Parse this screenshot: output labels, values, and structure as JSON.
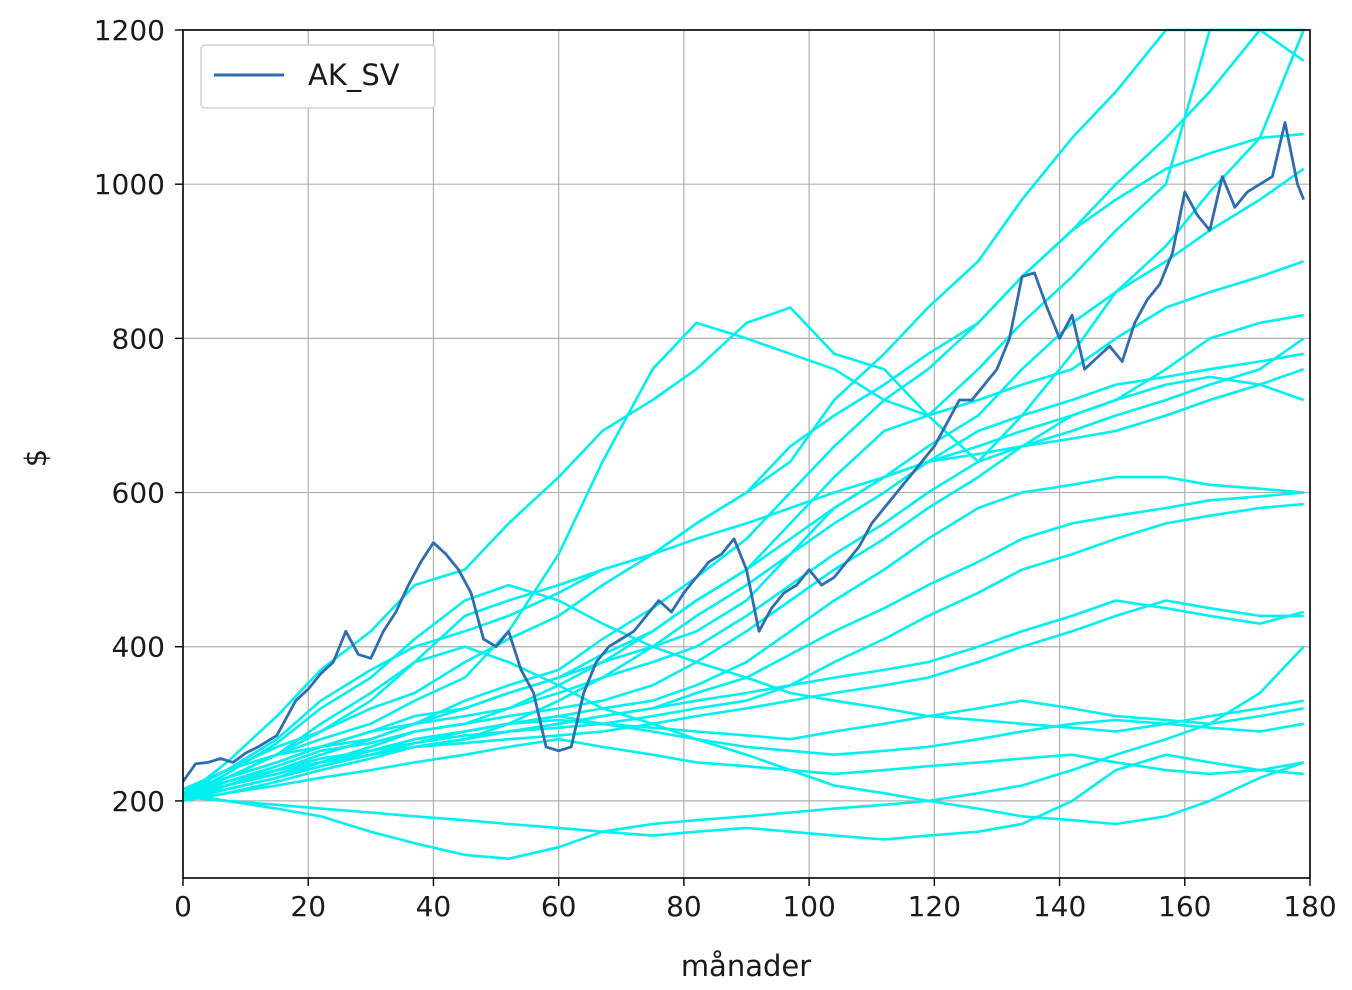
{
  "chart_data": {
    "type": "line",
    "title": "",
    "xlabel": "månader",
    "ylabel": "$",
    "xlim": [
      0,
      180
    ],
    "ylim": [
      100,
      1200
    ],
    "x_ticks": [
      0,
      20,
      40,
      60,
      80,
      100,
      120,
      140,
      160,
      180
    ],
    "y_ticks": [
      200,
      400,
      600,
      800,
      1000,
      1200
    ],
    "grid": true,
    "legend": {
      "placement": "top-left",
      "entries": [
        "AK_SV"
      ]
    },
    "colors": {
      "simulations": "#00f0f0",
      "highlight": "#2f6db0",
      "grid": "#b0b0b0"
    },
    "series": [
      {
        "name": "AK_SV",
        "color": "#2f6db0",
        "x": [
          0,
          2,
          4,
          6,
          8,
          10,
          12,
          15,
          18,
          20,
          22,
          24,
          26,
          28,
          30,
          32,
          34,
          36,
          38,
          40,
          42,
          44,
          46,
          48,
          50,
          52,
          54,
          56,
          58,
          60,
          62,
          64,
          66,
          68,
          70,
          72,
          74,
          76,
          78,
          80,
          82,
          84,
          86,
          88,
          90,
          92,
          94,
          96,
          98,
          100,
          102,
          104,
          106,
          108,
          110,
          112,
          114,
          116,
          118,
          120,
          122,
          124,
          126,
          128,
          130,
          132,
          134,
          136,
          138,
          140,
          142,
          144,
          146,
          148,
          150,
          152,
          154,
          156,
          158,
          160,
          162,
          164,
          166,
          168,
          170,
          172,
          174,
          176,
          178,
          179
        ],
        "values": [
          225,
          248,
          250,
          255,
          250,
          262,
          270,
          285,
          330,
          345,
          365,
          380,
          420,
          390,
          385,
          420,
          445,
          480,
          510,
          535,
          520,
          500,
          470,
          410,
          400,
          420,
          370,
          340,
          270,
          265,
          270,
          340,
          380,
          400,
          410,
          420,
          440,
          460,
          445,
          470,
          490,
          510,
          520,
          540,
          500,
          420,
          450,
          470,
          480,
          500,
          480,
          490,
          510,
          530,
          560,
          580,
          600,
          620,
          640,
          660,
          690,
          720,
          720,
          740,
          760,
          800,
          880,
          885,
          840,
          800,
          830,
          760,
          775,
          790,
          770,
          820,
          850,
          870,
          910,
          990,
          960,
          940,
          1010,
          970,
          990,
          1000,
          1010,
          1080,
          1000,
          980
        ]
      },
      {
        "name": "",
        "color": "#00f0f0",
        "values": [
          205,
          250,
          310,
          370,
          420,
          480,
          500,
          560,
          620,
          680,
          720,
          760,
          820,
          840,
          780,
          760,
          700,
          640,
          700,
          780,
          860,
          920,
          990,
          1060,
          1200
        ]
      },
      {
        "name": "",
        "color": "#00f0f0",
        "values": [
          215,
          230,
          260,
          280,
          300,
          330,
          360,
          420,
          520,
          640,
          760,
          820,
          800,
          780,
          760,
          720,
          700,
          760,
          820,
          880,
          940,
          1000,
          1200,
          1200,
          1200
        ]
      },
      {
        "name": "",
        "color": "#00f0f0",
        "values": [
          210,
          240,
          270,
          290,
          320,
          340,
          380,
          410,
          440,
          480,
          520,
          560,
          600,
          640,
          720,
          780,
          840,
          900,
          980,
          1060,
          1120,
          1200,
          1200,
          1200,
          1200
        ]
      },
      {
        "name": "",
        "color": "#00f0f0",
        "values": [
          205,
          230,
          260,
          290,
          330,
          380,
          440,
          460,
          480,
          500,
          520,
          560,
          600,
          660,
          700,
          740,
          780,
          820,
          880,
          940,
          1000,
          1060,
          1120,
          1200,
          1160
        ]
      },
      {
        "name": "",
        "color": "#00f0f0",
        "values": [
          200,
          220,
          240,
          260,
          280,
          300,
          330,
          350,
          370,
          410,
          450,
          490,
          540,
          600,
          660,
          720,
          760,
          820,
          880,
          940,
          980,
          1020,
          1040,
          1060,
          1065
        ]
      },
      {
        "name": "",
        "color": "#00f0f0",
        "values": [
          210,
          230,
          250,
          270,
          290,
          310,
          320,
          340,
          360,
          380,
          400,
          420,
          460,
          520,
          580,
          620,
          660,
          700,
          760,
          820,
          860,
          900,
          940,
          980,
          1020
        ]
      },
      {
        "name": "",
        "color": "#00f0f0",
        "values": [
          215,
          240,
          260,
          270,
          280,
          300,
          320,
          340,
          360,
          390,
          420,
          460,
          500,
          560,
          620,
          680,
          700,
          720,
          740,
          760,
          800,
          840,
          860,
          880,
          900
        ]
      },
      {
        "name": "",
        "color": "#00f0f0",
        "values": [
          205,
          225,
          245,
          265,
          275,
          290,
          300,
          320,
          350,
          380,
          420,
          460,
          500,
          540,
          580,
          620,
          640,
          660,
          680,
          700,
          720,
          760,
          800,
          820,
          830
        ]
      },
      {
        "name": "",
        "color": "#00f0f0",
        "values": [
          210,
          230,
          250,
          270,
          290,
          300,
          310,
          320,
          340,
          360,
          380,
          400,
          440,
          480,
          520,
          560,
          600,
          640,
          660,
          680,
          700,
          720,
          740,
          760,
          800
        ]
      },
      {
        "name": "",
        "color": "#00f0f0",
        "values": [
          200,
          220,
          240,
          250,
          260,
          270,
          280,
          300,
          330,
          360,
          400,
          440,
          480,
          520,
          560,
          600,
          640,
          680,
          700,
          720,
          740,
          750,
          760,
          770,
          780
        ]
      },
      {
        "name": "",
        "color": "#00f0f0",
        "values": [
          205,
          215,
          230,
          250,
          270,
          290,
          300,
          310,
          320,
          330,
          350,
          380,
          420,
          460,
          500,
          540,
          580,
          620,
          660,
          700,
          720,
          740,
          750,
          740,
          720
        ]
      },
      {
        "name": "",
        "color": "#00f0f0",
        "values": [
          210,
          220,
          235,
          250,
          265,
          280,
          290,
          300,
          310,
          320,
          330,
          350,
          380,
          420,
          460,
          500,
          540,
          580,
          600,
          610,
          620,
          620,
          610,
          605,
          600
        ]
      },
      {
        "name": "",
        "color": "#00f0f0",
        "values": [
          200,
          215,
          230,
          245,
          260,
          270,
          280,
          290,
          300,
          310,
          320,
          340,
          360,
          390,
          420,
          450,
          480,
          510,
          540,
          560,
          570,
          580,
          590,
          595,
          600
        ]
      },
      {
        "name": "",
        "color": "#00f0f0",
        "values": [
          205,
          220,
          240,
          255,
          265,
          275,
          285,
          290,
          295,
          300,
          310,
          320,
          330,
          350,
          380,
          410,
          440,
          470,
          500,
          520,
          540,
          560,
          570,
          580,
          585
        ]
      },
      {
        "name": "",
        "color": "#00f0f0",
        "values": [
          210,
          225,
          240,
          250,
          260,
          270,
          275,
          280,
          285,
          290,
          300,
          310,
          320,
          330,
          340,
          350,
          360,
          380,
          400,
          420,
          440,
          460,
          450,
          440,
          440
        ]
      },
      {
        "name": "",
        "color": "#00f0f0",
        "values": [
          200,
          210,
          225,
          240,
          255,
          270,
          280,
          290,
          300,
          310,
          320,
          330,
          340,
          350,
          360,
          370,
          380,
          400,
          420,
          440,
          460,
          450,
          440,
          430,
          445
        ]
      },
      {
        "name": "",
        "color": "#00f0f0",
        "values": [
          205,
          215,
          230,
          245,
          260,
          275,
          290,
          300,
          305,
          300,
          295,
          290,
          285,
          280,
          290,
          300,
          310,
          320,
          330,
          320,
          310,
          305,
          300,
          310,
          320
        ]
      },
      {
        "name": "",
        "color": "#00f0f0",
        "values": [
          210,
          220,
          235,
          250,
          265,
          280,
          290,
          300,
          310,
          300,
          290,
          280,
          270,
          265,
          260,
          265,
          270,
          280,
          290,
          300,
          305,
          300,
          295,
          290,
          300
        ]
      },
      {
        "name": "",
        "color": "#00f0f0",
        "values": [
          200,
          210,
          220,
          230,
          240,
          250,
          260,
          270,
          280,
          270,
          260,
          250,
          245,
          240,
          235,
          240,
          245,
          250,
          255,
          260,
          250,
          240,
          235,
          240,
          250
        ]
      },
      {
        "name": "",
        "color": "#00f0f0",
        "values": [
          205,
          200,
          190,
          180,
          160,
          145,
          130,
          125,
          140,
          160,
          170,
          175,
          180,
          185,
          190,
          195,
          200,
          210,
          220,
          240,
          260,
          280,
          300,
          340,
          400
        ]
      },
      {
        "name": "",
        "color": "#00f0f0",
        "values": [
          210,
          200,
          195,
          190,
          185,
          180,
          175,
          170,
          165,
          160,
          155,
          160,
          165,
          160,
          155,
          150,
          155,
          160,
          170,
          200,
          240,
          260,
          250,
          240,
          235
        ]
      },
      {
        "name": "",
        "color": "#00f0f0",
        "values": [
          215,
          230,
          260,
          300,
          340,
          380,
          400,
          380,
          350,
          320,
          300,
          280,
          260,
          240,
          220,
          210,
          200,
          190,
          180,
          175,
          170,
          180,
          200,
          230,
          250
        ]
      },
      {
        "name": "",
        "color": "#00f0f0",
        "values": [
          205,
          235,
          275,
          320,
          360,
          410,
          460,
          480,
          460,
          430,
          400,
          380,
          360,
          340,
          330,
          320,
          310,
          305,
          300,
          295,
          290,
          300,
          310,
          320,
          330
        ]
      },
      {
        "name": "",
        "color": "#00f0f0",
        "values": [
          210,
          240,
          280,
          330,
          370,
          400,
          420,
          440,
          470,
          500,
          520,
          540,
          560,
          580,
          600,
          620,
          640,
          650,
          660,
          670,
          680,
          700,
          720,
          740,
          760
        ]
      }
    ]
  }
}
